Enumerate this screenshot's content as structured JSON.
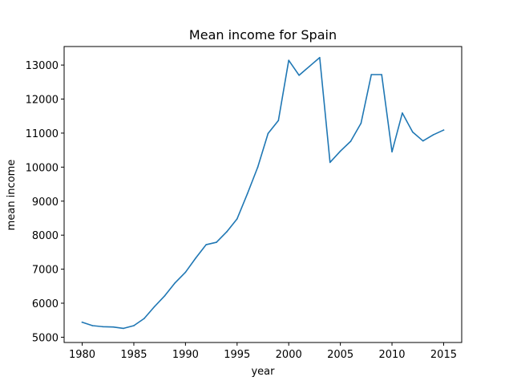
{
  "chart_data": {
    "type": "line",
    "title": "Mean income for Spain",
    "xlabel": "year",
    "ylabel": "mean income",
    "xlim": [
      1978.25,
      2016.75
    ],
    "ylim": [
      4845,
      13545
    ],
    "xticks": [
      1980,
      1985,
      1990,
      1995,
      2000,
      2005,
      2010,
      2015
    ],
    "yticks": [
      5000,
      6000,
      7000,
      8000,
      9000,
      10000,
      11000,
      12000,
      13000
    ],
    "grid": false,
    "series": [
      {
        "color": "#1f77b4",
        "x": [
          1980,
          1981,
          1982,
          1983,
          1984,
          1985,
          1986,
          1987,
          1988,
          1989,
          1990,
          1991,
          1992,
          1993,
          1994,
          1995,
          1996,
          1997,
          1998,
          1999,
          2000,
          2001,
          2002,
          2003,
          2004,
          2005,
          2006,
          2007,
          2008,
          2009,
          2010,
          2011,
          2012,
          2013,
          2014,
          2015
        ],
        "y": [
          5440,
          5340,
          5310,
          5300,
          5260,
          5340,
          5550,
          5900,
          6220,
          6600,
          6910,
          7330,
          7720,
          7790,
          8100,
          8480,
          9220,
          10000,
          10990,
          11370,
          13140,
          12700,
          12960,
          13220,
          10140,
          10470,
          10760,
          11290,
          12720,
          12720,
          10450,
          11590,
          11030,
          10770,
          10950,
          11090
        ]
      }
    ]
  }
}
